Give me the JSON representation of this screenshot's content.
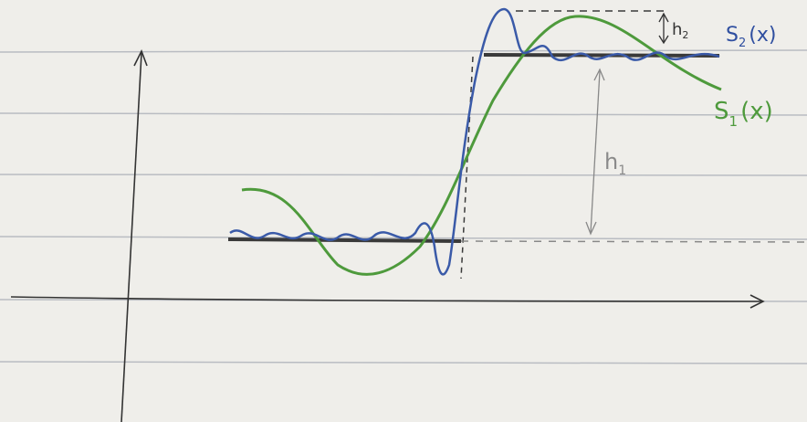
{
  "labels": {
    "s2": {
      "main": "S",
      "sub": "2",
      "arg": "(x)"
    },
    "s1": {
      "main": "S",
      "sub": "1",
      "arg": "(x)"
    },
    "h1": {
      "main": "h",
      "sub": "1"
    },
    "h2": {
      "main": "h",
      "sub": "2"
    }
  }
}
